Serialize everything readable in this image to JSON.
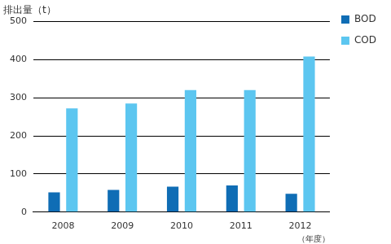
{
  "chart_data": {
    "type": "bar",
    "y_label": "排出量（t）",
    "x_label": "（年度）",
    "categories": [
      "2008",
      "2009",
      "2010",
      "2011",
      "2012"
    ],
    "series": [
      {
        "name": "BOD",
        "color": "#0f6db5",
        "values": [
          52,
          58,
          67,
          70,
          48
        ]
      },
      {
        "name": "COD",
        "color": "#5cc6f0",
        "values": [
          272,
          285,
          320,
          320,
          408
        ]
      }
    ],
    "ylim": [
      0,
      500
    ],
    "yticks": [
      0,
      100,
      200,
      300,
      400,
      500
    ],
    "grid": true,
    "legend": "right"
  }
}
